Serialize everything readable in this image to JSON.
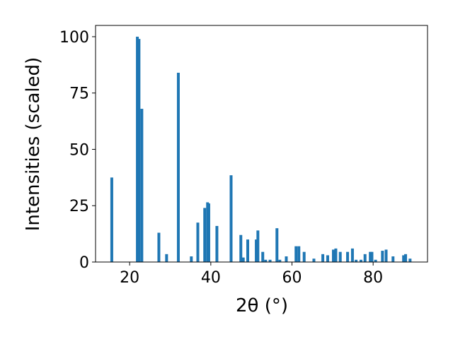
{
  "chart_data": {
    "type": "bar",
    "xlabel": "2θ (°)",
    "ylabel": "Intensities (scaled)",
    "color": "#1f77b4",
    "x": [
      15.6,
      21.9,
      22.3,
      23.0,
      27.2,
      29.1,
      32.0,
      35.2,
      36.8,
      38.5,
      39.2,
      39.5,
      41.5,
      45.0,
      47.4,
      48.0,
      49.1,
      51.2,
      51.6,
      52.8,
      53.5,
      54.6,
      56.3,
      57.0,
      58.6,
      61.0,
      61.7,
      63.0,
      65.4,
      67.6,
      68.8,
      70.2,
      70.8,
      71.9,
      73.7,
      74.9,
      75.8,
      77.0,
      78.0,
      79.3,
      79.7,
      80.6,
      82.3,
      83.2,
      84.9,
      87.5,
      88.0,
      89.1
    ],
    "values": [
      37.5,
      100,
      99,
      68,
      13,
      3.5,
      84,
      2.5,
      17.5,
      24,
      26.5,
      26,
      16,
      38.5,
      12,
      2,
      10,
      10,
      14,
      4.5,
      1,
      1,
      15,
      1,
      2.5,
      7,
      7,
      4.5,
      1.5,
      3.5,
      3,
      5.5,
      6,
      4.5,
      4.5,
      6,
      1,
      1,
      3.5,
      4.5,
      4.5,
      1,
      5,
      5.5,
      2.5,
      3,
      3.5,
      1.5
    ],
    "xlim": [
      11.6,
      93.4
    ],
    "ylim": [
      0,
      105
    ],
    "xticks": [
      20,
      40,
      60,
      80
    ],
    "yticks": [
      0,
      25,
      50,
      75,
      100
    ]
  }
}
